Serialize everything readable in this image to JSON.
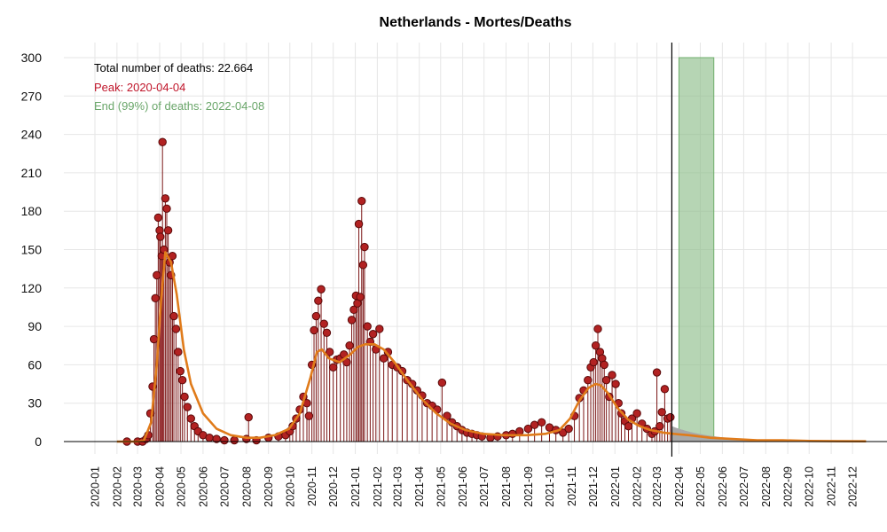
{
  "chart_data": {
    "type": "scatter",
    "title": "Netherlands - Mortes/Deaths",
    "xlabel": "",
    "ylabel": "",
    "ylim": [
      0,
      300
    ],
    "yticks": [
      0,
      30,
      60,
      90,
      120,
      150,
      180,
      210,
      240,
      270,
      300
    ],
    "xlim": [
      "2020-01-01",
      "2023-01-01"
    ],
    "xticks": [
      "2020-01",
      "2020-02",
      "2020-03",
      "2020-04",
      "2020-05",
      "2020-06",
      "2020-07",
      "2020-08",
      "2020-09",
      "2020-10",
      "2020-11",
      "2020-12",
      "2021-01",
      "2021-02",
      "2021-03",
      "2021-04",
      "2021-05",
      "2021-06",
      "2021-07",
      "2021-08",
      "2021-09",
      "2021-10",
      "2021-11",
      "2021-12",
      "2022-01",
      "2022-02",
      "2022-03",
      "2022-04",
      "2022-05",
      "2022-06",
      "2022-07",
      "2022-08",
      "2022-09",
      "2022-10",
      "2022-11",
      "2022-12"
    ],
    "grid": true,
    "annotations": {
      "total": "Total number of deaths: 22.664",
      "peak": "Peak: 2020-04-04",
      "end": "End (99%) of deaths: 2022-04-08"
    },
    "peak_date": "2020-04-04",
    "end_window": [
      "2022-04-01",
      "2022-05-20"
    ],
    "last_observation_date": "2022-03-22",
    "colors": {
      "points": "#b22222",
      "point_edge": "#5a0a0a",
      "stems": "#7a1515",
      "smooth": "#e07b1a",
      "peak_band": "#e8707a",
      "end_band": "#8fbf8c",
      "forecast": "#a8a8a8",
      "peak_text": "#c0152a",
      "end_text": "#6aa66a"
    },
    "observed": {
      "dates": [
        "2020-02-15",
        "2020-03-01",
        "2020-03-08",
        "2020-03-13",
        "2020-03-16",
        "2020-03-19",
        "2020-03-22",
        "2020-03-24",
        "2020-03-26",
        "2020-03-28",
        "2020-03-30",
        "2020-04-01",
        "2020-04-02",
        "2020-04-04",
        "2020-04-05",
        "2020-04-07",
        "2020-04-09",
        "2020-04-11",
        "2020-04-13",
        "2020-04-15",
        "2020-04-17",
        "2020-04-19",
        "2020-04-21",
        "2020-04-24",
        "2020-04-27",
        "2020-04-30",
        "2020-05-03",
        "2020-05-06",
        "2020-05-10",
        "2020-05-15",
        "2020-05-20",
        "2020-05-25",
        "2020-06-01",
        "2020-06-10",
        "2020-06-20",
        "2020-07-01",
        "2020-07-15",
        "2020-08-01",
        "2020-08-04",
        "2020-08-15",
        "2020-09-01",
        "2020-09-15",
        "2020-09-25",
        "2020-10-01",
        "2020-10-05",
        "2020-10-10",
        "2020-10-15",
        "2020-10-20",
        "2020-10-25",
        "2020-10-28",
        "2020-11-01",
        "2020-11-04",
        "2020-11-07",
        "2020-11-10",
        "2020-11-14",
        "2020-11-18",
        "2020-11-22",
        "2020-11-26",
        "2020-12-01",
        "2020-12-06",
        "2020-12-11",
        "2020-12-16",
        "2020-12-20",
        "2020-12-24",
        "2020-12-27",
        "2020-12-30",
        "2021-01-02",
        "2021-01-04",
        "2021-01-06",
        "2021-01-08",
        "2021-01-10",
        "2021-01-12",
        "2021-01-14",
        "2021-01-18",
        "2021-01-22",
        "2021-01-26",
        "2021-01-30",
        "2021-02-04",
        "2021-02-10",
        "2021-02-16",
        "2021-02-22",
        "2021-03-01",
        "2021-03-08",
        "2021-03-15",
        "2021-03-22",
        "2021-03-29",
        "2021-04-05",
        "2021-04-12",
        "2021-04-19",
        "2021-04-26",
        "2021-05-03",
        "2021-05-10",
        "2021-05-17",
        "2021-05-24",
        "2021-05-31",
        "2021-06-07",
        "2021-06-14",
        "2021-06-21",
        "2021-06-28",
        "2021-07-10",
        "2021-07-20",
        "2021-08-01",
        "2021-08-10",
        "2021-08-20",
        "2021-09-01",
        "2021-09-10",
        "2021-09-20",
        "2021-10-01",
        "2021-10-10",
        "2021-10-20",
        "2021-10-28",
        "2021-11-05",
        "2021-11-12",
        "2021-11-18",
        "2021-11-24",
        "2021-11-28",
        "2021-12-02",
        "2021-12-05",
        "2021-12-08",
        "2021-12-11",
        "2021-12-14",
        "2021-12-17",
        "2021-12-20",
        "2021-12-24",
        "2021-12-28",
        "2022-01-02",
        "2022-01-06",
        "2022-01-10",
        "2022-01-15",
        "2022-01-20",
        "2022-01-25",
        "2022-02-01",
        "2022-02-08",
        "2022-02-15",
        "2022-02-22",
        "2022-02-26",
        "2022-03-01",
        "2022-03-05",
        "2022-03-08",
        "2022-03-12",
        "2022-03-16",
        "2022-03-20"
      ],
      "values": [
        0,
        0,
        0,
        2,
        5,
        22,
        43,
        80,
        112,
        130,
        175,
        165,
        160,
        145,
        234,
        150,
        190,
        182,
        165,
        140,
        130,
        145,
        98,
        88,
        70,
        55,
        48,
        35,
        27,
        18,
        12,
        8,
        5,
        3,
        2,
        1,
        1,
        2,
        19,
        1,
        3,
        4,
        5,
        8,
        12,
        18,
        25,
        35,
        30,
        20,
        60,
        87,
        98,
        110,
        119,
        92,
        85,
        70,
        58,
        64,
        65,
        68,
        62,
        75,
        95,
        103,
        114,
        108,
        170,
        113,
        188,
        138,
        152,
        90,
        78,
        84,
        72,
        88,
        65,
        70,
        60,
        58,
        55,
        48,
        45,
        40,
        36,
        30,
        28,
        25,
        46,
        20,
        15,
        12,
        9,
        7,
        6,
        5,
        4,
        3,
        4,
        5,
        6,
        8,
        10,
        13,
        15,
        11,
        9,
        7,
        10,
        20,
        34,
        40,
        48,
        58,
        62,
        75,
        88,
        70,
        65,
        60,
        48,
        35,
        52,
        45,
        30,
        22,
        16,
        12,
        18,
        22,
        14,
        10,
        6,
        8,
        54,
        12,
        23,
        41,
        18,
        19
      ]
    },
    "forecast_start": "2022-03-22",
    "forecast_end": "2022-12-20",
    "smooth": {
      "dates": [
        "2020-02-01",
        "2020-03-01",
        "2020-03-10",
        "2020-03-20",
        "2020-03-28",
        "2020-04-03",
        "2020-04-09",
        "2020-04-17",
        "2020-04-25",
        "2020-05-05",
        "2020-05-15",
        "2020-06-01",
        "2020-06-20",
        "2020-07-10",
        "2020-08-01",
        "2020-08-20",
        "2020-09-10",
        "2020-09-30",
        "2020-10-15",
        "2020-10-30",
        "2020-11-08",
        "2020-11-15",
        "2020-11-25",
        "2020-12-10",
        "2020-12-25",
        "2021-01-05",
        "2021-01-15",
        "2021-01-28",
        "2021-02-10",
        "2021-02-25",
        "2021-03-15",
        "2021-04-05",
        "2021-04-25",
        "2021-05-15",
        "2021-06-05",
        "2021-06-30",
        "2021-07-30",
        "2021-08-30",
        "2021-09-25",
        "2021-10-15",
        "2021-10-30",
        "2021-11-12",
        "2021-11-25",
        "2021-12-05",
        "2021-12-12",
        "2021-12-22",
        "2022-01-05",
        "2022-01-20",
        "2022-02-05",
        "2022-02-20",
        "2022-03-10",
        "2022-03-25",
        "2022-04-15",
        "2022-05-15",
        "2022-06-15",
        "2022-07-20",
        "2022-08-25",
        "2022-10-01",
        "2022-11-10",
        "2022-12-20"
      ],
      "values": [
        0,
        0,
        1,
        15,
        60,
        110,
        148,
        140,
        115,
        72,
        45,
        22,
        10,
        5,
        3,
        3,
        5,
        10,
        22,
        50,
        70,
        72,
        65,
        62,
        68,
        74,
        76,
        76,
        72,
        62,
        48,
        33,
        22,
        14,
        9,
        6,
        5,
        5,
        6,
        9,
        18,
        32,
        42,
        45,
        44,
        38,
        26,
        17,
        12,
        9,
        7,
        6,
        5,
        3,
        2,
        1,
        1,
        0.5,
        0.3,
        0.2
      ]
    }
  }
}
